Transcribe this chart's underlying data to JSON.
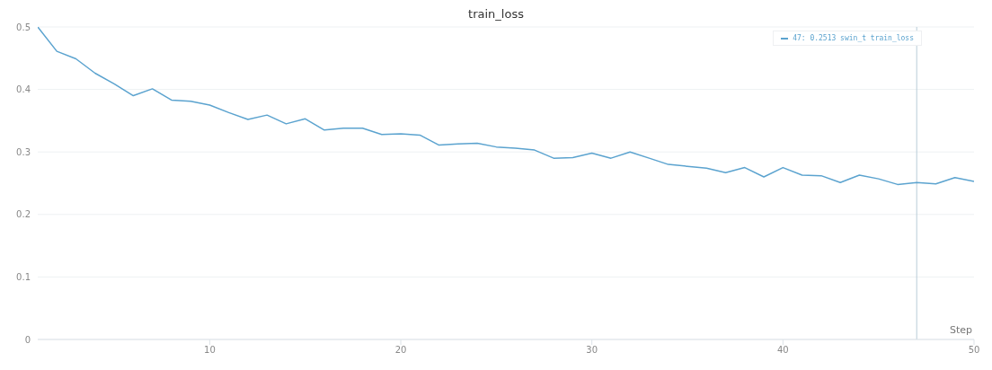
{
  "chart_data": {
    "type": "line",
    "title": "train_loss",
    "xlabel": "Step",
    "x": [
      1,
      2,
      3,
      4,
      5,
      6,
      7,
      8,
      9,
      10,
      11,
      12,
      13,
      14,
      15,
      16,
      17,
      18,
      19,
      20,
      21,
      22,
      23,
      24,
      25,
      26,
      27,
      28,
      29,
      30,
      31,
      32,
      33,
      34,
      35,
      36,
      37,
      38,
      39,
      40,
      41,
      42,
      43,
      44,
      45,
      46,
      47,
      48,
      49,
      50
    ],
    "series": [
      {
        "color": "#5ba3cf",
        "values": [
          0.5,
          0.461,
          0.449,
          0.426,
          0.409,
          0.39,
          0.401,
          0.383,
          0.381,
          0.375,
          0.363,
          0.352,
          0.359,
          0.345,
          0.353,
          0.335,
          0.338,
          0.338,
          0.328,
          0.329,
          0.327,
          0.311,
          0.313,
          0.314,
          0.308,
          0.306,
          0.303,
          0.29,
          0.291,
          0.298,
          0.29,
          0.3,
          0.29,
          0.28,
          0.277,
          0.274,
          0.267,
          0.275,
          0.26,
          0.275,
          0.263,
          0.262,
          0.251,
          0.263,
          0.257,
          0.248,
          0.251,
          0.249,
          0.259,
          0.253
        ]
      }
    ],
    "xlim": [
      1,
      50
    ],
    "xticks": [
      10,
      20,
      30,
      40,
      50
    ],
    "ylim": [
      0,
      0.5
    ],
    "yticks": [
      0,
      0.1,
      0.2,
      0.3,
      0.4,
      0.5
    ],
    "grid": "y",
    "marker": "none",
    "line_style": "solid",
    "ref_lines": [
      {
        "axis": "x",
        "value": 47,
        "color": "#b8ccd8"
      }
    ],
    "annotations": [
      "47: 0.2513 swin_t train_loss"
    ]
  }
}
